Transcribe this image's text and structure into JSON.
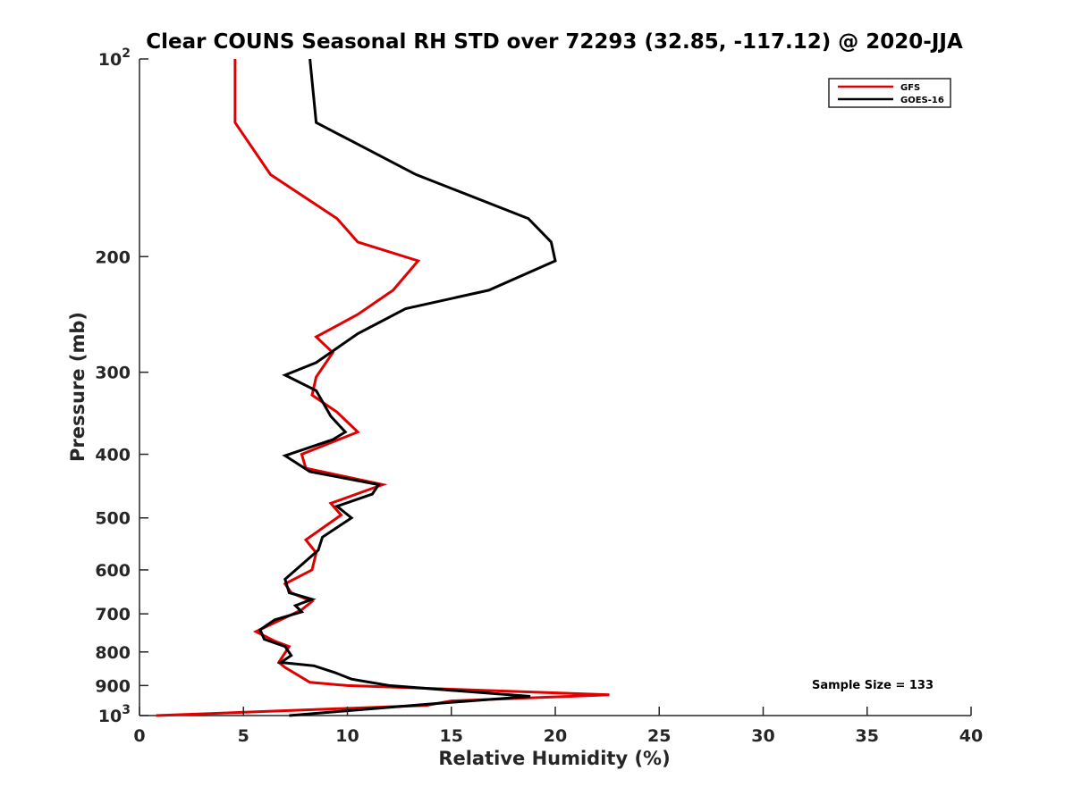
{
  "chart_data": {
    "type": "line",
    "title": "Clear COUNS Seasonal RH STD over 72293 (32.85, -117.12) @ 2020-JJA",
    "xlabel": "Relative Humidity (%)",
    "ylabel": "Pressure (mb)",
    "xlim": [
      0,
      40
    ],
    "ylim": [
      100,
      1000
    ],
    "yscale": "log",
    "yreversed": true,
    "grid": false,
    "legend_position": "top-right",
    "x_ticks": [
      {
        "value": 0,
        "label": "0"
      },
      {
        "value": 5,
        "label": "5"
      },
      {
        "value": 10,
        "label": "10"
      },
      {
        "value": 15,
        "label": "15"
      },
      {
        "value": 20,
        "label": "20"
      },
      {
        "value": 25,
        "label": "25"
      },
      {
        "value": 30,
        "label": "30"
      },
      {
        "value": 35,
        "label": "35"
      },
      {
        "value": 40,
        "label": "40"
      }
    ],
    "y_ticks": [
      {
        "value": 100,
        "base": "10",
        "exp": "2"
      },
      {
        "value": 200,
        "label": "200"
      },
      {
        "value": 300,
        "label": "300"
      },
      {
        "value": 400,
        "label": "400"
      },
      {
        "value": 500,
        "label": "500"
      },
      {
        "value": 600,
        "label": "600"
      },
      {
        "value": 700,
        "label": "700"
      },
      {
        "value": 800,
        "label": "800"
      },
      {
        "value": 900,
        "label": "900"
      },
      {
        "value": 1000,
        "base": "10",
        "exp": "3"
      }
    ],
    "series": [
      {
        "name": "GFS",
        "color": "#e00000",
        "points": [
          [
            4.6,
            100
          ],
          [
            4.6,
            125
          ],
          [
            6.3,
            150
          ],
          [
            9.5,
            175
          ],
          [
            10.5,
            190
          ],
          [
            13.4,
            203
          ],
          [
            12.2,
            225
          ],
          [
            10.5,
            245
          ],
          [
            8.5,
            265
          ],
          [
            9.3,
            280
          ],
          [
            8.5,
            305
          ],
          [
            8.3,
            325
          ],
          [
            9.5,
            345
          ],
          [
            10.5,
            370
          ],
          [
            7.8,
            400
          ],
          [
            8.0,
            420
          ],
          [
            11.7,
            445
          ],
          [
            9.2,
            475
          ],
          [
            9.7,
            495
          ],
          [
            8.0,
            540
          ],
          [
            8.5,
            565
          ],
          [
            8.3,
            600
          ],
          [
            7.0,
            630
          ],
          [
            7.3,
            650
          ],
          [
            8.3,
            670
          ],
          [
            7.8,
            690
          ],
          [
            5.6,
            745
          ],
          [
            6.5,
            770
          ],
          [
            7.2,
            785
          ],
          [
            6.7,
            830
          ],
          [
            7.0,
            845
          ],
          [
            8.2,
            890
          ],
          [
            10.0,
            900
          ],
          [
            22.6,
            930
          ],
          [
            15.0,
            950
          ],
          [
            13.8,
            965
          ],
          [
            0.8,
            1000
          ]
        ]
      },
      {
        "name": "GOES-16",
        "color": "#000000",
        "points": [
          [
            8.2,
            100
          ],
          [
            8.5,
            125
          ],
          [
            13.3,
            150
          ],
          [
            18.7,
            175
          ],
          [
            19.8,
            190
          ],
          [
            20.0,
            203
          ],
          [
            16.8,
            225
          ],
          [
            12.8,
            240
          ],
          [
            10.5,
            262
          ],
          [
            8.5,
            290
          ],
          [
            7.0,
            303
          ],
          [
            8.5,
            320
          ],
          [
            9.2,
            350
          ],
          [
            9.9,
            370
          ],
          [
            9.3,
            380
          ],
          [
            7.0,
            402
          ],
          [
            8.2,
            425
          ],
          [
            11.5,
            445
          ],
          [
            11.2,
            460
          ],
          [
            9.5,
            480
          ],
          [
            10.2,
            500
          ],
          [
            8.8,
            535
          ],
          [
            8.6,
            560
          ],
          [
            7.0,
            620
          ],
          [
            7.2,
            650
          ],
          [
            8.3,
            665
          ],
          [
            7.5,
            680
          ],
          [
            7.8,
            695
          ],
          [
            6.5,
            715
          ],
          [
            5.8,
            740
          ],
          [
            6.0,
            765
          ],
          [
            7.0,
            785
          ],
          [
            7.3,
            810
          ],
          [
            6.8,
            830
          ],
          [
            8.4,
            840
          ],
          [
            9.4,
            860
          ],
          [
            10.2,
            880
          ],
          [
            12.0,
            900
          ],
          [
            18.8,
            935
          ],
          [
            14.0,
            960
          ],
          [
            7.2,
            1000
          ]
        ]
      }
    ],
    "annotation": "Sample Size = 133"
  }
}
